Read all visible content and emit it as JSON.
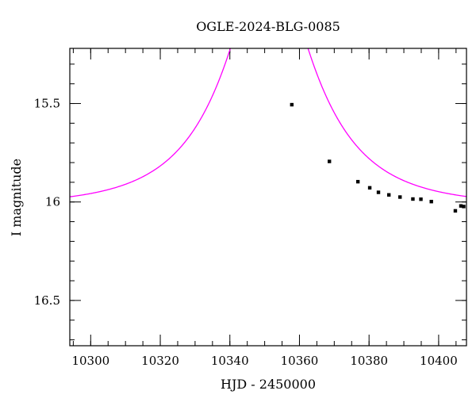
{
  "chart_data": {
    "type": "line",
    "title": "OGLE-2024-BLG-0085",
    "xlabel": "HJD - 2450000",
    "ylabel": "I magnitude",
    "xlim": [
      10294,
      10408
    ],
    "ylim": [
      16.73,
      15.22
    ],
    "y_inverted": true,
    "grid": false,
    "x_major_ticks": [
      10300,
      10320,
      10340,
      10360,
      10380,
      10400
    ],
    "x_minor_step": 5,
    "y_major_ticks": [
      15.5,
      16,
      16.5
    ],
    "y_major_tick_labels": [
      "15.5",
      "16",
      "16.5"
    ],
    "y_minor_step": 0.1,
    "colors": {
      "model": "#ff00ff",
      "points": "#000000"
    },
    "series": [
      {
        "kind": "model-curve",
        "model": {
          "t0": 10351.3,
          "tE": 25.5,
          "u0": 0.296,
          "I_base": 16.018
        }
      },
      {
        "kind": "observations",
        "x": [
          10357.8,
          10368.6,
          10376.8,
          10380.2,
          10382.7,
          10385.7,
          10388.9,
          10392.6,
          10394.9,
          10397.9,
          10404.8,
          10406.4,
          10407.2
        ],
        "y": [
          15.506,
          15.794,
          15.897,
          15.928,
          15.951,
          15.964,
          15.975,
          15.985,
          15.986,
          15.998,
          16.045,
          16.02,
          16.023
        ],
        "yerr": [
          0.006,
          0.006,
          0.006,
          0.006,
          0.006,
          0.006,
          0.006,
          0.006,
          0.006,
          0.006,
          0.008,
          0.006,
          0.006
        ]
      }
    ]
  }
}
